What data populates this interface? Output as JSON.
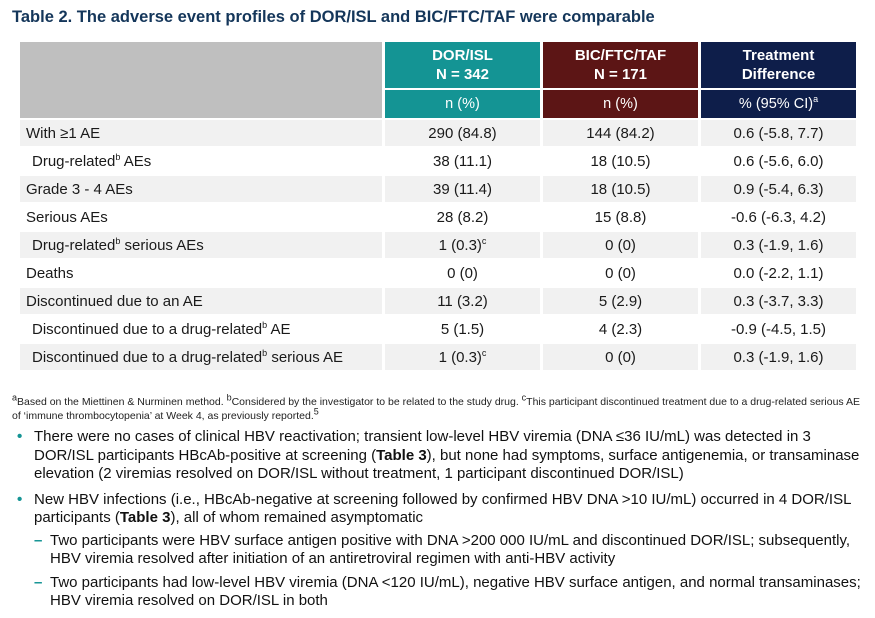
{
  "title": "Table 2. The adverse event profiles of DOR/ISL and BIC/FTC/TAF were comparable",
  "columns": [
    {
      "name": "DOR/ISL",
      "n": "N = 342",
      "sub": "n (%)",
      "color": "#149494"
    },
    {
      "name": "BIC/FTC/TAF",
      "n": "N = 171",
      "sub": "n (%)",
      "color": "#5c1515"
    },
    {
      "name": "Treatment Difference",
      "sub_main": "% (95% CI)",
      "sub_sup": "a",
      "color": "#0e1e4a"
    }
  ],
  "rows": [
    {
      "label": "With ≥1 AE",
      "label_sup": "",
      "label_post": "",
      "indent": false,
      "dor": "290 (84.8)",
      "dor_sup": "",
      "bic": "144 (84.2)",
      "diff": "0.6 (-5.8, 7.7)"
    },
    {
      "label": "Drug-related",
      "label_sup": "b",
      "label_post": " AEs",
      "indent": true,
      "dor": "38 (11.1)",
      "dor_sup": "",
      "bic": "18 (10.5)",
      "diff": "0.6 (-5.6, 6.0)"
    },
    {
      "label": "Grade 3 - 4 AEs",
      "label_sup": "",
      "label_post": "",
      "indent": false,
      "dor": "39 (11.4)",
      "dor_sup": "",
      "bic": "18 (10.5)",
      "diff": "0.9 (-5.4, 6.3)"
    },
    {
      "label": "Serious AEs",
      "label_sup": "",
      "label_post": "",
      "indent": false,
      "dor": "28 (8.2)",
      "dor_sup": "",
      "bic": "15 (8.8)",
      "diff": "-0.6 (-6.3, 4.2)"
    },
    {
      "label": "Drug-related",
      "label_sup": "b",
      "label_post": " serious AEs",
      "indent": true,
      "dor": "1 (0.3)",
      "dor_sup": "c",
      "bic": "0 (0)",
      "diff": "0.3 (-1.9, 1.6)"
    },
    {
      "label": "Deaths",
      "label_sup": "",
      "label_post": "",
      "indent": false,
      "dor": "0 (0)",
      "dor_sup": "",
      "bic": "0 (0)",
      "diff": "0.0 (-2.2, 1.1)"
    },
    {
      "label": "Discontinued due to an AE",
      "label_sup": "",
      "label_post": "",
      "indent": false,
      "dor": "11 (3.2)",
      "dor_sup": "",
      "bic": "5 (2.9)",
      "diff": "0.3 (-3.7, 3.3)"
    },
    {
      "label": "Discontinued due to a drug-related",
      "label_sup": "b",
      "label_post": " AE",
      "indent": true,
      "dor": "5 (1.5)",
      "dor_sup": "",
      "bic": "4 (2.3)",
      "diff": "-0.9 (-4.5, 1.5)"
    },
    {
      "label": "Discontinued due to a drug-related",
      "label_sup": "b",
      "label_post": " serious AE",
      "indent": true,
      "dor": "1 (0.3)",
      "dor_sup": "c",
      "bic": "0 (0)",
      "diff": "0.3 (-1.9, 1.6)"
    }
  ],
  "footnote": {
    "a_sup": "a",
    "a": "Based on the Miettinen & Nurminen method. ",
    "b_sup": "b",
    "b": "Considered by the investigator to be related to the study drug. ",
    "c_sup": "c",
    "c": "This participant discontinued treatment due to a drug-related serious AE of ‘immune thrombocytopenia’ at Week 4, as previously reported.",
    "ref_sup": "5"
  },
  "bullets": [
    {
      "pre": "There were no cases of clinical HBV reactivation; transient low-level HBV viremia (DNA ≤36 IU/mL) was detected in 3 DOR/ISL participants HBcAb-positive at screening (",
      "bold": "Table 3",
      "post": "), but none had symptoms, surface antigenemia, or transaminase elevation (2 viremias resolved on DOR/ISL without treatment, 1 participant discontinued DOR/ISL)"
    },
    {
      "pre": "New HBV infections (i.e., HBcAb-negative at screening followed by confirmed HBV DNA >10 IU/mL) occurred in 4 DOR/ISL participants (",
      "bold": "Table 3",
      "post": "), all of whom remained asymptomatic"
    }
  ],
  "subbullets": [
    "Two participants were HBV surface antigen positive with DNA >200 000 IU/mL and discontinued DOR/ISL; subsequently, HBV viremia resolved after initiation of an antiretroviral regimen with anti-HBV activity",
    "Two participants had low-level HBV viremia (DNA <120 IU/mL), negative HBV surface antigen, and normal transaminases; HBV viremia resolved on DOR/ISL in both"
  ],
  "marks": {
    "bullet": "•",
    "dash": "–"
  }
}
